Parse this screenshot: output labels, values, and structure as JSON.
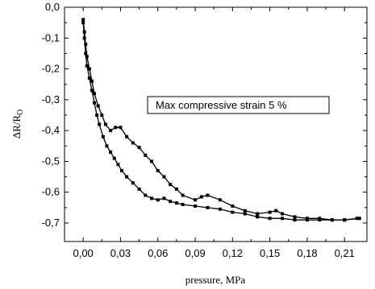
{
  "chart_data": {
    "type": "scatter",
    "xlabel": "pressure, MPa",
    "ylabel_main": "ΔR/R",
    "ylabel_sub": "O",
    "annotation": "Max compressive strain 5 %",
    "xlim": [
      -0.015,
      0.228
    ],
    "ylim": [
      -0.76,
      0.0
    ],
    "x_ticks": [
      0.0,
      0.03,
      0.06,
      0.09,
      0.12,
      0.15,
      0.18,
      0.21
    ],
    "x_tick_labels": [
      "0,00",
      "0,03",
      "0,06",
      "0,09",
      "0,12",
      "0,15",
      "0,18",
      "0,21"
    ],
    "y_ticks": [
      0.0,
      -0.1,
      -0.2,
      -0.3,
      -0.4,
      -0.5,
      -0.6,
      -0.7
    ],
    "y_tick_labels": [
      "0,0",
      "-0,1",
      "-0,2",
      "-0,3",
      "-0,4",
      "-0,5",
      "-0,6",
      "-0,7"
    ],
    "grid": false,
    "series": [
      {
        "points": [
          [
            0.0,
            -0.05
          ],
          [
            0.001,
            -0.1
          ],
          [
            0.002,
            -0.15
          ],
          [
            0.003,
            -0.19
          ],
          [
            0.005,
            -0.23
          ],
          [
            0.007,
            -0.27
          ],
          [
            0.009,
            -0.31
          ],
          [
            0.011,
            -0.35
          ],
          [
            0.013,
            -0.38
          ],
          [
            0.016,
            -0.42
          ],
          [
            0.019,
            -0.45
          ],
          [
            0.022,
            -0.47
          ],
          [
            0.025,
            -0.49
          ],
          [
            0.028,
            -0.51
          ],
          [
            0.031,
            -0.53
          ],
          [
            0.035,
            -0.55
          ],
          [
            0.04,
            -0.57
          ],
          [
            0.045,
            -0.59
          ],
          [
            0.05,
            -0.61
          ],
          [
            0.055,
            -0.62
          ],
          [
            0.06,
            -0.625
          ],
          [
            0.065,
            -0.62
          ],
          [
            0.07,
            -0.63
          ],
          [
            0.075,
            -0.635
          ],
          [
            0.08,
            -0.64
          ],
          [
            0.09,
            -0.645
          ],
          [
            0.1,
            -0.65
          ],
          [
            0.11,
            -0.655
          ],
          [
            0.12,
            -0.665
          ],
          [
            0.13,
            -0.67
          ],
          [
            0.14,
            -0.68
          ],
          [
            0.15,
            -0.685
          ],
          [
            0.16,
            -0.685
          ],
          [
            0.17,
            -0.69
          ],
          [
            0.18,
            -0.69
          ],
          [
            0.19,
            -0.69
          ],
          [
            0.2,
            -0.69
          ],
          [
            0.21,
            -0.69
          ],
          [
            0.22,
            -0.685
          ]
        ]
      },
      {
        "points": [
          [
            0.222,
            -0.685
          ],
          [
            0.21,
            -0.69
          ],
          [
            0.2,
            -0.69
          ],
          [
            0.19,
            -0.685
          ],
          [
            0.18,
            -0.685
          ],
          [
            0.17,
            -0.68
          ],
          [
            0.16,
            -0.67
          ],
          [
            0.155,
            -0.66
          ],
          [
            0.15,
            -0.665
          ],
          [
            0.14,
            -0.67
          ],
          [
            0.13,
            -0.66
          ],
          [
            0.12,
            -0.645
          ],
          [
            0.11,
            -0.625
          ],
          [
            0.1,
            -0.61
          ],
          [
            0.095,
            -0.615
          ],
          [
            0.09,
            -0.625
          ],
          [
            0.08,
            -0.61
          ],
          [
            0.075,
            -0.59
          ],
          [
            0.07,
            -0.575
          ],
          [
            0.065,
            -0.55
          ],
          [
            0.06,
            -0.53
          ],
          [
            0.055,
            -0.5
          ],
          [
            0.05,
            -0.48
          ],
          [
            0.045,
            -0.455
          ],
          [
            0.04,
            -0.44
          ],
          [
            0.035,
            -0.42
          ],
          [
            0.03,
            -0.39
          ],
          [
            0.026,
            -0.39
          ],
          [
            0.022,
            -0.4
          ],
          [
            0.018,
            -0.38
          ],
          [
            0.015,
            -0.35
          ],
          [
            0.012,
            -0.32
          ],
          [
            0.009,
            -0.28
          ],
          [
            0.007,
            -0.24
          ],
          [
            0.005,
            -0.2
          ],
          [
            0.003,
            -0.16
          ],
          [
            0.002,
            -0.12
          ],
          [
            0.001,
            -0.08
          ],
          [
            0.0,
            -0.04
          ]
        ]
      }
    ]
  }
}
